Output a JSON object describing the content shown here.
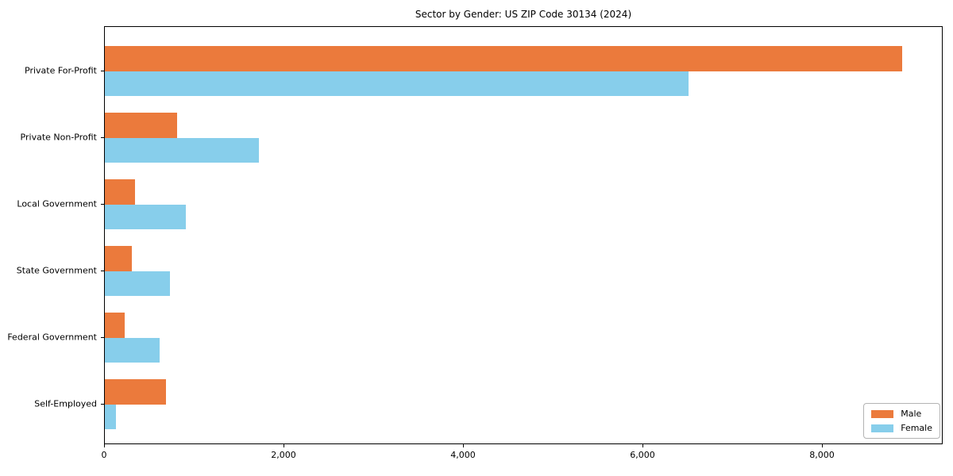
{
  "chart_data": {
    "type": "bar",
    "orientation": "horizontal",
    "title": "Sector by Gender: US ZIP Code 30134 (2024)",
    "categories": [
      "Private For-Profit",
      "Private Non-Profit",
      "Local Government",
      "State Government",
      "Federal Government",
      "Self-Employed"
    ],
    "series": [
      {
        "name": "Male",
        "color": "#eb7a3c",
        "values": [
          8885,
          805,
          335,
          300,
          220,
          685
        ]
      },
      {
        "name": "Female",
        "color": "#87ceeb",
        "values": [
          6505,
          1715,
          905,
          730,
          610,
          125
        ]
      }
    ],
    "xlabel": "",
    "ylabel": "",
    "xlim": [
      0,
      9345
    ],
    "xticks": [
      {
        "value": 0,
        "label": "0"
      },
      {
        "value": 2000,
        "label": "2,000"
      },
      {
        "value": 4000,
        "label": "4,000"
      },
      {
        "value": 6000,
        "label": "6,000"
      },
      {
        "value": 8000,
        "label": "8,000"
      }
    ],
    "legend": {
      "position": "lower right",
      "entries": [
        "Male",
        "Female"
      ]
    },
    "grid": false,
    "background": "#ffffff",
    "spine_color": "#000000"
  }
}
